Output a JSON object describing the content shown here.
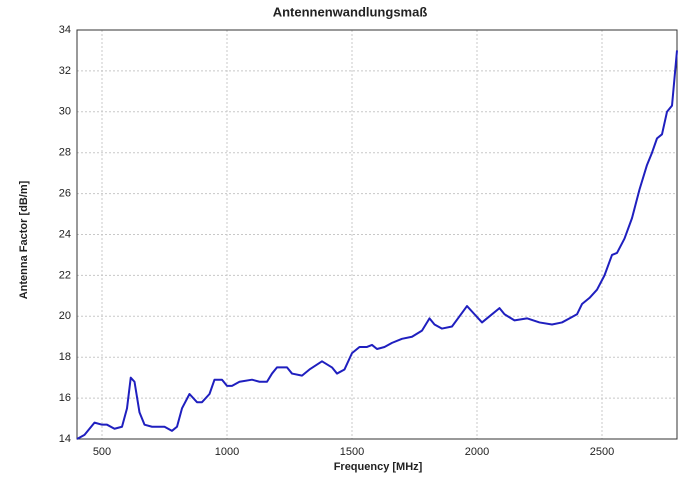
{
  "chart_data": {
    "type": "line",
    "title": "Antennenwandlungsmaß",
    "x_label": "Frequency [MHz]",
    "y_label": "Antenna Factor [dB/m]",
    "x": [
      400,
      430,
      450,
      470,
      500,
      520,
      550,
      580,
      600,
      615,
      630,
      650,
      670,
      700,
      750,
      780,
      800,
      820,
      850,
      880,
      900,
      930,
      950,
      980,
      1000,
      1020,
      1050,
      1100,
      1130,
      1160,
      1180,
      1200,
      1240,
      1260,
      1300,
      1330,
      1380,
      1420,
      1440,
      1470,
      1500,
      1530,
      1560,
      1580,
      1600,
      1630,
      1660,
      1700,
      1740,
      1780,
      1810,
      1830,
      1860,
      1900,
      1930,
      1960,
      1990,
      2020,
      2050,
      2090,
      2110,
      2150,
      2200,
      2250,
      2300,
      2340,
      2370,
      2400,
      2420,
      2450,
      2480,
      2510,
      2540,
      2560,
      2590,
      2620,
      2650,
      2680,
      2700,
      2720,
      2740,
      2760,
      2780,
      2800
    ],
    "series": [
      {
        "name": "Antenna Factor",
        "color": "#1f1fbf",
        "values": [
          14.0,
          14.2,
          14.5,
          14.8,
          14.7,
          14.7,
          14.5,
          14.6,
          15.5,
          17.0,
          16.8,
          15.3,
          14.7,
          14.6,
          14.6,
          14.4,
          14.6,
          15.5,
          16.2,
          15.8,
          15.8,
          16.2,
          16.9,
          16.9,
          16.6,
          16.6,
          16.8,
          16.9,
          16.8,
          16.8,
          17.2,
          17.5,
          17.5,
          17.2,
          17.1,
          17.4,
          17.8,
          17.5,
          17.2,
          17.4,
          18.2,
          18.5,
          18.5,
          18.6,
          18.4,
          18.5,
          18.7,
          18.9,
          19.0,
          19.3,
          19.9,
          19.6,
          19.4,
          19.5,
          20.0,
          20.5,
          20.1,
          19.7,
          20.0,
          20.4,
          20.1,
          19.8,
          19.9,
          19.7,
          19.6,
          19.7,
          19.9,
          20.1,
          20.6,
          20.9,
          21.3,
          22.0,
          23.0,
          23.1,
          23.8,
          24.8,
          26.2,
          27.4,
          28.0,
          28.7,
          28.9,
          30.0,
          30.3,
          33.0
        ]
      }
    ],
    "xlim": [
      400,
      2800
    ],
    "xticks": [
      500,
      1000,
      1500,
      2000,
      2500
    ],
    "ylim": [
      14,
      34
    ],
    "yticks": [
      14,
      16,
      18,
      20,
      22,
      24,
      26,
      28,
      30,
      32,
      34
    ],
    "grid": true
  }
}
